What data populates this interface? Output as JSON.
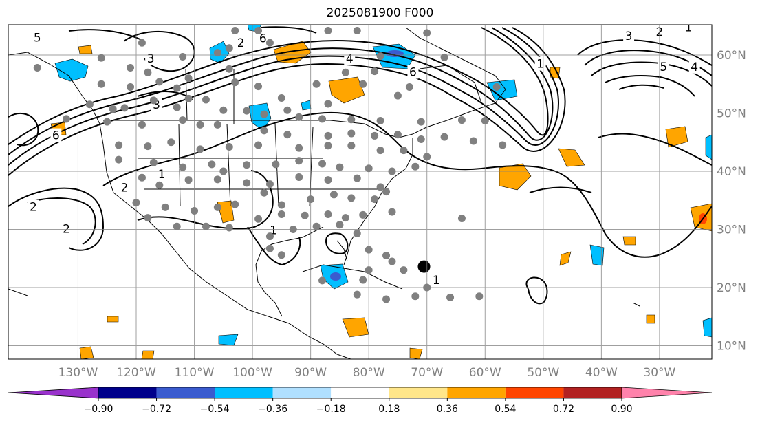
{
  "title": "2025081900 F000",
  "map": {
    "lon_range": [
      -142,
      -21
    ],
    "lat_range": [
      7.7,
      65.2
    ],
    "lat_gridlines": [
      10,
      20,
      30,
      40,
      50,
      60
    ],
    "lon_gridlines": [
      -130,
      -120,
      -110,
      -100,
      -90,
      -80,
      -70,
      -60,
      -50,
      -40,
      -30
    ],
    "lat_labels": [
      "10°N",
      "20°N",
      "30°N",
      "40°N",
      "50°N",
      "60°N"
    ],
    "lon_labels": [
      "130°W",
      "120°W",
      "110°W",
      "100°W",
      "90°W",
      "80°W",
      "70°W",
      "60°W",
      "50°W",
      "40°W",
      "30°W"
    ],
    "contour_labels": [
      {
        "text": "1",
        "lon": -50.5,
        "lat": 58.5
      },
      {
        "text": "1",
        "lon": -115.6,
        "lat": 39.5
      },
      {
        "text": "1",
        "lon": -96.4,
        "lat": 29.9
      },
      {
        "text": "1",
        "lon": -68.4,
        "lat": 21.3
      },
      {
        "text": "1",
        "lon": -25.0,
        "lat": 64.8
      },
      {
        "text": "2",
        "lon": -137.7,
        "lat": 33.9
      },
      {
        "text": "2",
        "lon": -122.0,
        "lat": 37.2
      },
      {
        "text": "2",
        "lon": -132.0,
        "lat": 30.1
      },
      {
        "text": "2",
        "lon": -102.0,
        "lat": 62.1
      },
      {
        "text": "2",
        "lon": -30.0,
        "lat": 64.0
      },
      {
        "text": "3",
        "lon": -117.5,
        "lat": 59.4
      },
      {
        "text": "3",
        "lon": -116.5,
        "lat": 51.5
      },
      {
        "text": "3",
        "lon": -35.3,
        "lat": 63.3
      },
      {
        "text": "4",
        "lon": -83.3,
        "lat": 59.4
      },
      {
        "text": "4",
        "lon": -24.0,
        "lat": 58.0
      },
      {
        "text": "5",
        "lon": -29.3,
        "lat": 58.0
      },
      {
        "text": "6",
        "lon": -98.2,
        "lat": 62.9
      },
      {
        "text": "6",
        "lon": -72.4,
        "lat": 57.1
      },
      {
        "text": "6",
        "lon": -133.8,
        "lat": 46.2
      },
      {
        "text": "5",
        "lon": -137.0,
        "lat": 63.0
      }
    ],
    "gray_dots": [
      [
        -103,
        64.2
      ],
      [
        -99,
        64.2
      ],
      [
        -87,
        64.2
      ],
      [
        -82,
        64.2
      ],
      [
        -70,
        63.8
      ],
      [
        -119,
        62.1
      ],
      [
        -104,
        61.2
      ],
      [
        -106,
        60.4
      ],
      [
        -97,
        62.1
      ],
      [
        -78,
        59.8
      ],
      [
        -67,
        59.6
      ],
      [
        -126,
        59.5
      ],
      [
        -112,
        59.7
      ],
      [
        -137,
        57.8
      ],
      [
        -121,
        57.8
      ],
      [
        -118,
        57.0
      ],
      [
        -104,
        57.6
      ],
      [
        -84,
        57.0
      ],
      [
        -79,
        57.2
      ],
      [
        -126,
        55.0
      ],
      [
        -116,
        55.4
      ],
      [
        -113,
        54.3
      ],
      [
        -121,
        54.5
      ],
      [
        -111,
        56.0
      ],
      [
        -103,
        55.3
      ],
      [
        -99,
        54.6
      ],
      [
        -89,
        55.0
      ],
      [
        -81,
        55.0
      ],
      [
        -58,
        54.5
      ],
      [
        -73,
        54.5
      ],
      [
        -95,
        52.6
      ],
      [
        -94,
        50.5
      ],
      [
        -87,
        51.6
      ],
      [
        -75,
        53.0
      ],
      [
        -117,
        52.2
      ],
      [
        -111,
        52.5
      ],
      [
        -108,
        52.3
      ],
      [
        -128,
        51.5
      ],
      [
        -124,
        50.7
      ],
      [
        -122,
        50.9
      ],
      [
        -113,
        51.0
      ],
      [
        -105,
        50.5
      ],
      [
        -101,
        50.4
      ],
      [
        -98,
        49.8
      ],
      [
        -92,
        49.3
      ],
      [
        -88,
        49.0
      ],
      [
        -83,
        48.9
      ],
      [
        -78,
        48.7
      ],
      [
        -71,
        48.5
      ],
      [
        -64,
        48.8
      ],
      [
        -60,
        48.7
      ],
      [
        -132,
        49.0
      ],
      [
        -125,
        48.5
      ],
      [
        -119,
        48.0
      ],
      [
        -112,
        48.8
      ],
      [
        -109,
        48.0
      ],
      [
        -106,
        48.0
      ],
      [
        -98,
        47.0
      ],
      [
        -94,
        46.3
      ],
      [
        -87,
        46.1
      ],
      [
        -83,
        46.5
      ],
      [
        -79,
        46.1
      ],
      [
        -75,
        46.3
      ],
      [
        -71,
        45.5
      ],
      [
        -67,
        45.9
      ],
      [
        -62,
        45.2
      ],
      [
        -57,
        44.5
      ],
      [
        -123,
        44.5
      ],
      [
        -118,
        44.3
      ],
      [
        -114,
        45.0
      ],
      [
        -109,
        43.8
      ],
      [
        -104,
        44.2
      ],
      [
        -99,
        44.5
      ],
      [
        -92,
        44.0
      ],
      [
        -87,
        44.4
      ],
      [
        -83,
        44.4
      ],
      [
        -78,
        43.6
      ],
      [
        -74,
        43.6
      ],
      [
        -70,
        42.5
      ],
      [
        -123,
        42.0
      ],
      [
        -117,
        41.5
      ],
      [
        -112,
        40.7
      ],
      [
        -107,
        41.2
      ],
      [
        -105,
        40.0
      ],
      [
        -101,
        41.1
      ],
      [
        -96,
        41.2
      ],
      [
        -92,
        41.8
      ],
      [
        -88,
        41.3
      ],
      [
        -85,
        40.7
      ],
      [
        -80,
        40.5
      ],
      [
        -76,
        40.0
      ],
      [
        -72,
        40.8
      ],
      [
        -119,
        38.9
      ],
      [
        -116,
        37.6
      ],
      [
        -111,
        38.5
      ],
      [
        -106,
        38.6
      ],
      [
        -101,
        38.0
      ],
      [
        -97,
        37.8
      ],
      [
        -92,
        39.0
      ],
      [
        -87,
        38.5
      ],
      [
        -82,
        38.8
      ],
      [
        -78,
        37.3
      ],
      [
        -120,
        34.6
      ],
      [
        -115,
        33.8
      ],
      [
        -110,
        33.2
      ],
      [
        -106,
        33.8
      ],
      [
        -103,
        34.3
      ],
      [
        -98,
        36.3
      ],
      [
        -95,
        34.2
      ],
      [
        -90,
        35.2
      ],
      [
        -86,
        36.0
      ],
      [
        -83,
        35.4
      ],
      [
        -79,
        35.2
      ],
      [
        -77,
        36.5
      ],
      [
        -118,
        32.0
      ],
      [
        -113,
        30.5
      ],
      [
        -108,
        30.5
      ],
      [
        -104,
        30.3
      ],
      [
        -99,
        31.8
      ],
      [
        -95,
        32.6
      ],
      [
        -91,
        32.4
      ],
      [
        -87,
        32.6
      ],
      [
        -84,
        32.0
      ],
      [
        -81,
        32.5
      ],
      [
        -76,
        33.0
      ],
      [
        -97,
        28.8
      ],
      [
        -93,
        30.0
      ],
      [
        -89,
        30.5
      ],
      [
        -85,
        30.8
      ],
      [
        -82,
        29.3
      ],
      [
        -97,
        26.7
      ],
      [
        -95,
        25.6
      ],
      [
        -80,
        26.5
      ],
      [
        -77,
        25.5
      ],
      [
        -76,
        24.5
      ],
      [
        -64,
        31.9
      ],
      [
        -80,
        23.0
      ],
      [
        -74,
        23.0
      ],
      [
        -82,
        18.8
      ],
      [
        -77,
        18.0
      ],
      [
        -72,
        18.5
      ],
      [
        -66,
        18.3
      ],
      [
        -61,
        18.5
      ],
      [
        -81,
        21.3
      ],
      [
        -88,
        21.2
      ],
      [
        -70,
        20.0
      ]
    ],
    "black_marker": {
      "lon": -70.5,
      "lat": 23.6
    },
    "land_lines": "coastline-outline"
  },
  "colorbar": {
    "ticks": [
      "−0.90",
      "−0.72",
      "−0.54",
      "−0.36",
      "−0.18",
      "0.18",
      "0.36",
      "0.54",
      "0.72",
      "0.90"
    ],
    "colors": [
      "#9932CC",
      "#00008B",
      "#3A5BCF",
      "#00BFFF",
      "#B0E0FF",
      "#FFFFFF",
      "#FFE68A",
      "#FFA500",
      "#FF4500",
      "#B22222",
      "#FF82AB"
    ]
  }
}
